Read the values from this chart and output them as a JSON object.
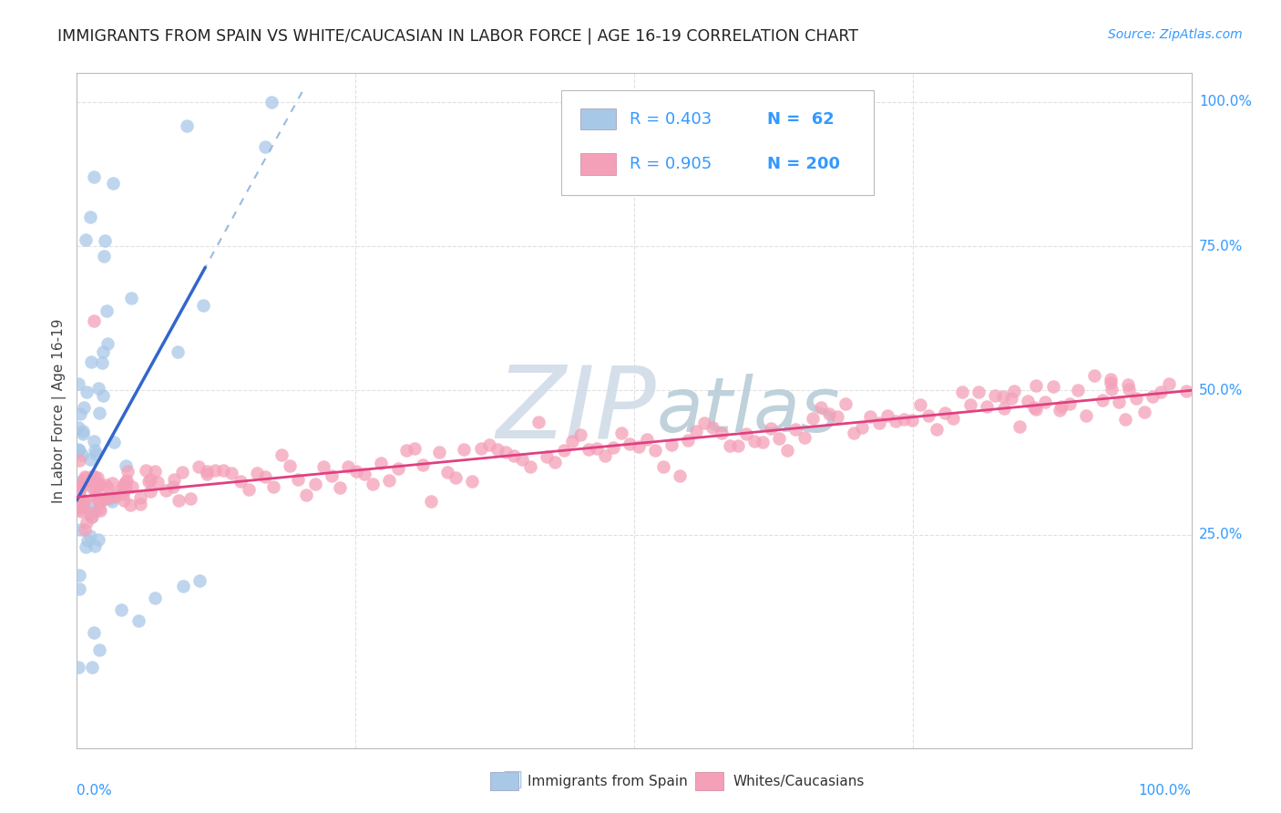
{
  "title": "IMMIGRANTS FROM SPAIN VS WHITE/CAUCASIAN IN LABOR FORCE | AGE 16-19 CORRELATION CHART",
  "source": "Source: ZipAtlas.com",
  "ylabel": "In Labor Force | Age 16-19",
  "ytick_labels": [
    "25.0%",
    "50.0%",
    "75.0%",
    "100.0%"
  ],
  "ytick_positions": [
    0.25,
    0.5,
    0.75,
    1.0
  ],
  "legend_blue_R": "0.403",
  "legend_blue_N": "62",
  "legend_pink_R": "0.905",
  "legend_pink_N": "200",
  "legend_label_blue": "Immigrants from Spain",
  "legend_label_pink": "Whites/Caucasians",
  "blue_scatter_color": "#a8c8e8",
  "pink_scatter_color": "#f4a0b8",
  "blue_line_color": "#3366cc",
  "pink_line_color": "#e04080",
  "blue_dash_color": "#99bbdd",
  "watermark_zip_color": "#c8d4e0",
  "watermark_atlas_color": "#b8c8d8",
  "title_color": "#222222",
  "axis_label_color": "#3399ff",
  "right_label_color": "#3399ff",
  "background_color": "#ffffff",
  "grid_color": "#dddddd",
  "legend_text_color": "#222222",
  "xlim": [
    0.0,
    1.0
  ],
  "ylim": [
    -0.12,
    1.05
  ]
}
